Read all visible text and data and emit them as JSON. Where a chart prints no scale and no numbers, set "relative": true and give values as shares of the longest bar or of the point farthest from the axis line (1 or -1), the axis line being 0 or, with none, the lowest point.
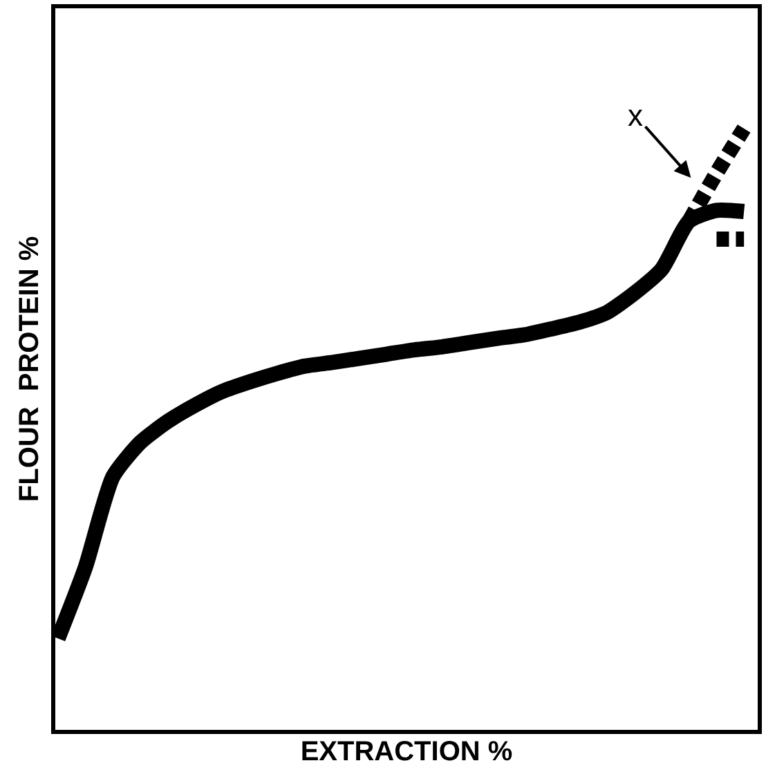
{
  "chart_data": {
    "type": "line",
    "relative": true,
    "xlabel": "EXTRACTION %",
    "ylabel": "FLOUR  PROTEIN %",
    "categories": [
      null,
      null,
      null,
      null,
      null,
      null,
      null,
      null,
      null,
      null,
      null,
      null,
      null,
      null,
      null,
      null,
      null,
      null,
      null,
      null,
      null,
      null,
      null,
      null,
      null,
      null
    ],
    "series": [
      {
        "color": "#000000",
        "line_style": "solid",
        "values": [
          0.152,
          0.271,
          0.421,
          0.478,
          0.513,
          0.54,
          0.563,
          0.579,
          0.593,
          0.605,
          0.611,
          0.618,
          0.625,
          0.632,
          0.637,
          0.644,
          0.651,
          0.657,
          0.667,
          0.678,
          0.694,
          0.726,
          0.766,
          0.846,
          0.864,
          0.862
        ]
      },
      {
        "color": "#000000",
        "line_style": "dashed",
        "values": [
          null,
          null,
          null,
          null,
          null,
          null,
          null,
          null,
          null,
          null,
          null,
          null,
          null,
          null,
          null,
          null,
          null,
          null,
          null,
          null,
          null,
          null,
          null,
          0.846,
          0.926,
          1.0
        ]
      },
      {
        "color": "#000000",
        "line_style": "dashed",
        "values": [
          null,
          null,
          null,
          null,
          null,
          null,
          null,
          null,
          null,
          null,
          null,
          null,
          null,
          null,
          null,
          null,
          null,
          null,
          null,
          null,
          null,
          null,
          null,
          null,
          0.816,
          0.816
        ]
      }
    ],
    "annotations": [
      "x"
    ],
    "marker": "none"
  }
}
